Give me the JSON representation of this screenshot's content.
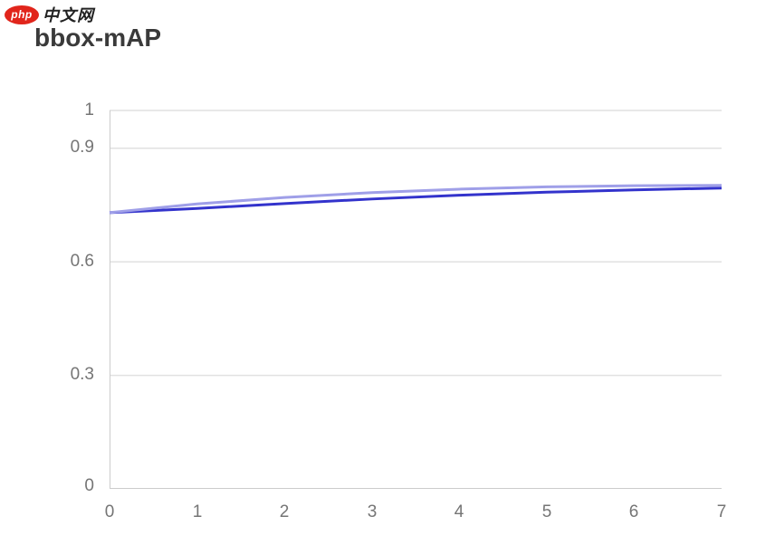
{
  "header": {
    "logo": {
      "badge_text": "php",
      "site_text": "中文网"
    },
    "title": "bbox-mAP"
  },
  "colors": {
    "logo_badge": "#e1251b",
    "title_text": "#3a3a3a",
    "tick_label": "#757575",
    "gridline": "#e1e1e1",
    "axis_line": "#cccccc",
    "series_light": "#9f9fe8",
    "series_dark": "#3333cc"
  },
  "chart_data": {
    "type": "line",
    "title": "bbox-mAP",
    "x": [
      0,
      1,
      2,
      3,
      4,
      5,
      6,
      7
    ],
    "series": [
      {
        "name": "bbox-mAP-light",
        "color": "#9f9fe8",
        "values": [
          0.73,
          0.753,
          0.77,
          0.783,
          0.792,
          0.798,
          0.801,
          0.802
        ]
      },
      {
        "name": "bbox-mAP-dark",
        "color": "#3333cc",
        "values": [
          0.73,
          0.741,
          0.754,
          0.766,
          0.776,
          0.784,
          0.79,
          0.795
        ]
      }
    ],
    "xlim": [
      0,
      7
    ],
    "ylim": [
      0,
      1
    ],
    "xtick_labels": [
      "0",
      "1",
      "2",
      "3",
      "4",
      "5",
      "6",
      "7"
    ],
    "ytick_labels": [
      "1",
      "0.9",
      "0.6",
      "0.3",
      "0"
    ],
    "ytick_values": [
      1,
      0.9,
      0.6,
      0.3,
      0
    ],
    "grid": "horizontal",
    "legend": "none",
    "xlabel": "",
    "ylabel": ""
  }
}
